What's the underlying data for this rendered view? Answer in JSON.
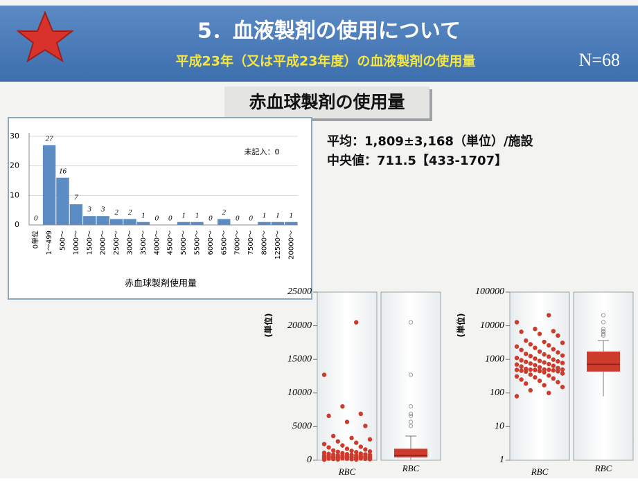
{
  "header": {
    "title": "5．血液製剤の使用について",
    "subtitle": "平成23年（又は平成23年度）の血液製剤の使用量",
    "n": "N=68"
  },
  "section_title": "赤血球製剤の使用量",
  "stats": [
    "平均：1,809±3,168（単位）/施設",
    "中央値：711.5【433-1707】"
  ],
  "chart_data": [
    {
      "type": "bar",
      "xlabel": "赤血球製剤使用量",
      "annotation": "未記入：0",
      "color": "#5b8cc4",
      "categories": [
        "0単位",
        "1～499",
        "500～",
        "1000～",
        "1500～",
        "2000～",
        "2500～",
        "3000～",
        "3500～",
        "4000～",
        "4500～",
        "5000～",
        "5500～",
        "6000～",
        "6500～",
        "7000～",
        "7500～",
        "8000～",
        "12500～",
        "20000～"
      ],
      "values": [
        0,
        27,
        16,
        7,
        3,
        3,
        2,
        2,
        1,
        0,
        0,
        1,
        1,
        0,
        2,
        0,
        0,
        1,
        1,
        1
      ],
      "ylim": [
        0,
        30
      ],
      "yticks": [
        0,
        10,
        20,
        30
      ],
      "grid": true
    },
    {
      "type": "box",
      "ylabel": "(単位)",
      "categories": [
        "RBC"
      ],
      "color": "#cc3b2c",
      "log_scale": false,
      "ylim": [
        0,
        25000
      ],
      "yticks": [
        0,
        5000,
        10000,
        15000,
        20000,
        25000
      ],
      "values": [
        80,
        100,
        120,
        150,
        170,
        190,
        210,
        230,
        250,
        270,
        290,
        310,
        330,
        350,
        380,
        410,
        433,
        440,
        450,
        460,
        470,
        480,
        485,
        490,
        493,
        496,
        499,
        520,
        550,
        580,
        610,
        640,
        670,
        700,
        723,
        750,
        780,
        810,
        840,
        870,
        900,
        940,
        980,
        1050,
        1100,
        1200,
        1250,
        1300,
        1400,
        1450,
        1600,
        1700,
        1900,
        2000,
        2200,
        2400,
        2600,
        2800,
        3100,
        3300,
        3600,
        5100,
        5700,
        6600,
        6900,
        8000,
        12700,
        20500
      ],
      "box": {
        "whisker_low": 80,
        "q1": 433,
        "median": 711.5,
        "q3": 1707,
        "whisker_high": 3600
      }
    },
    {
      "type": "box",
      "ylabel": "(単位)",
      "categories": [
        "RBC"
      ],
      "color": "#cc3b2c",
      "log_scale": true,
      "ylim": [
        1,
        100000
      ],
      "yticks": [
        1,
        10,
        100,
        1000,
        10000,
        100000
      ],
      "values": [
        80,
        100,
        120,
        150,
        170,
        190,
        210,
        230,
        250,
        270,
        290,
        310,
        330,
        350,
        380,
        410,
        433,
        440,
        450,
        460,
        470,
        480,
        485,
        490,
        493,
        496,
        499,
        520,
        550,
        580,
        610,
        640,
        670,
        700,
        723,
        750,
        780,
        810,
        840,
        870,
        900,
        940,
        980,
        1050,
        1100,
        1200,
        1250,
        1300,
        1400,
        1450,
        1600,
        1700,
        1900,
        2000,
        2200,
        2400,
        2600,
        2800,
        3100,
        3300,
        3600,
        5100,
        5700,
        6600,
        6900,
        8000,
        12700,
        20500
      ],
      "box": {
        "whisker_low": 80,
        "q1": 433,
        "median": 711.5,
        "q3": 1707,
        "whisker_high": 3600
      }
    }
  ]
}
